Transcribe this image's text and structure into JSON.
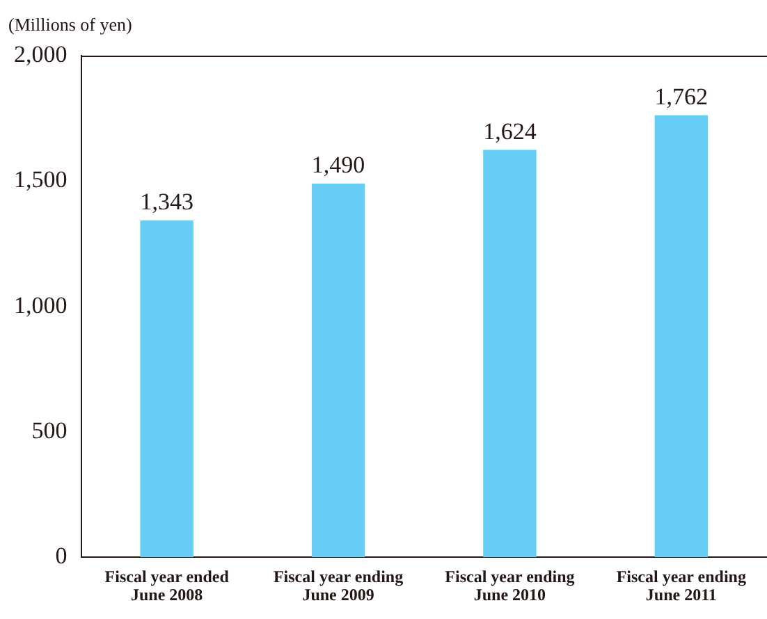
{
  "chart_data": {
    "type": "bar",
    "ylabel": "(Millions of yen)",
    "categories": [
      "Fiscal year ended June 2008",
      "Fiscal year ending June 2009",
      "Fiscal year ending June 2010",
      "Fiscal year ending June 2011"
    ],
    "values": [
      1343,
      1490,
      1624,
      1762
    ],
    "color": "#66cdf5",
    "value_labels": [
      "1,343",
      "1,490",
      "1,624",
      "1,762"
    ],
    "ylim": [
      0,
      2000
    ],
    "yticks": [
      {
        "value": 0,
        "label": "0"
      },
      {
        "value": 500,
        "label": "500"
      },
      {
        "value": 1000,
        "label": "1,000"
      },
      {
        "value": 1500,
        "label": "1,500"
      },
      {
        "value": 2000,
        "label": "2,000"
      }
    ],
    "grid": false,
    "legend": false
  }
}
